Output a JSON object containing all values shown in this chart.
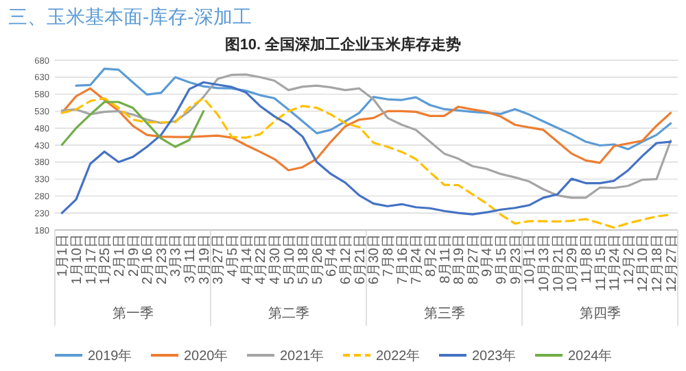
{
  "chart_data": {
    "type": "line",
    "title": "图10. 全国深加工企业玉米库存走势",
    "annotations": [
      "三、玉米基本面-库存-深加工",
      "第一季",
      "第二季",
      "第三季",
      "第四季"
    ],
    "categories": [
      "1月1日",
      "1月10日",
      "1月17日",
      "1月25日",
      "2月1日",
      "2月9日",
      "2月16日",
      "2月23日",
      "3月3日",
      "3月11日",
      "3月19日",
      "3月27日",
      "4月5日",
      "4月14日",
      "4月22日",
      "4月30日",
      "5月10日",
      "5月18日",
      "5月26日",
      "6月4日",
      "6月12日",
      "6月21日",
      "6月30日",
      "7月8日",
      "7月16日",
      "7月24日",
      "8月2日",
      "8月11日",
      "8月19日",
      "8月27日",
      "9月4日",
      "9月15日",
      "9月23日",
      "10月1日",
      "10月13日",
      "10月21日",
      "10月29日",
      "11月8日",
      "11月15日",
      "11月24日",
      "12月2日",
      "12月10日",
      "12月18日",
      "12月27日"
    ],
    "series": [
      {
        "name": "2019年",
        "color": "#5b9bd5",
        "values": [
          null,
          605,
          607,
          655,
          652,
          615,
          579,
          584,
          630,
          615,
          603,
          598,
          597,
          590,
          577,
          568,
          535,
          500,
          465,
          475,
          500,
          525,
          572,
          565,
          563,
          571,
          548,
          536,
          532,
          528,
          525,
          522,
          536,
          520,
          500,
          481,
          462,
          440,
          429,
          432,
          418,
          440,
          460,
          494
        ]
      },
      {
        "name": "2020年",
        "color": "#ed7d31",
        "values": [
          525,
          574,
          597,
          563,
          531,
          487,
          460,
          455,
          454,
          454,
          456,
          458,
          452,
          430,
          410,
          389,
          356,
          365,
          390,
          440,
          485,
          505,
          510,
          530,
          530,
          528,
          516,
          516,
          543,
          535,
          528,
          514,
          490,
          482,
          475,
          440,
          405,
          385,
          378,
          427,
          435,
          443,
          487,
          525
        ]
      },
      {
        "name": "2021年",
        "color": "#a5a5a5",
        "values": [
          532,
          535,
          521,
          528,
          530,
          520,
          505,
          495,
          500,
          530,
          572,
          625,
          637,
          638,
          630,
          620,
          592,
          602,
          605,
          600,
          592,
          597,
          565,
          510,
          490,
          475,
          440,
          405,
          390,
          368,
          360,
          345,
          335,
          323,
          300,
          282,
          275,
          275,
          305,
          304,
          310,
          328,
          330,
          443
        ]
      },
      {
        "name": "2022年",
        "color": "#ffc000",
        "line_style": "dashed",
        "values": [
          525,
          535,
          560,
          568,
          540,
          505,
          497,
          497,
          497,
          541,
          568,
          520,
          454,
          452,
          462,
          500,
          530,
          545,
          540,
          520,
          495,
          483,
          437,
          425,
          410,
          389,
          350,
          313,
          312,
          285,
          258,
          225,
          199,
          206,
          206,
          205,
          207,
          212,
          200,
          187,
          200,
          210,
          220,
          225
        ]
      },
      {
        "name": "2023年",
        "color": "#4472c4",
        "values": [
          230,
          270,
          375,
          411,
          380,
          395,
          425,
          460,
          520,
          595,
          615,
          608,
          601,
          585,
          545,
          515,
          490,
          455,
          380,
          345,
          320,
          282,
          258,
          250,
          256,
          247,
          244,
          236,
          230,
          226,
          232,
          240,
          245,
          253,
          275,
          285,
          331,
          318,
          318,
          325,
          356,
          398,
          436,
          440
        ]
      },
      {
        "name": "2024年",
        "color": "#70ad47",
        "values": [
          431,
          480,
          520,
          557,
          557,
          540,
          495,
          450,
          425,
          445,
          530,
          null,
          null,
          null,
          null,
          null,
          null,
          null,
          null,
          null,
          null,
          null,
          null,
          null,
          null,
          null,
          null,
          null,
          null,
          null,
          null,
          null,
          null,
          null,
          null,
          null,
          null,
          null,
          null,
          null,
          null,
          null,
          null,
          null
        ]
      }
    ],
    "ylim": [
      180,
      680
    ],
    "yticks": [
      180,
      230,
      280,
      330,
      380,
      430,
      480,
      530,
      580,
      630,
      680
    ],
    "grid": "y",
    "legend": "bottom",
    "line_style": "solid"
  }
}
